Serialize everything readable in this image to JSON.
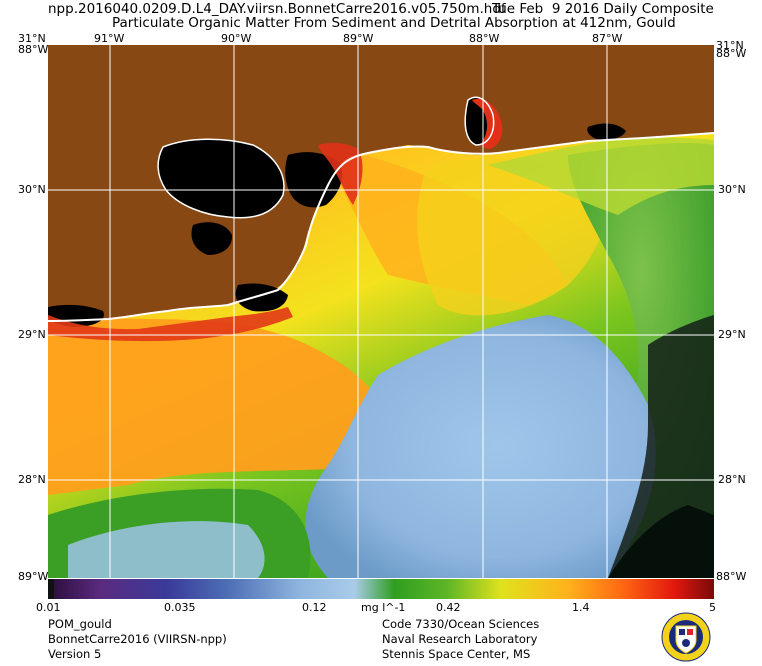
{
  "header": {
    "filename": "npp.2016040.0209.D.L4_DAY.viirsn.BonnetCarre2016.v05.750m.hdf",
    "date_label": "Tue Feb  9 2016 Daily Composite",
    "product_title": "Particulate Organic Matter From Sediment and Detrital Absorption at 412nm, Gould"
  },
  "map": {
    "top_lon_labels": [
      "91°W",
      "90°W",
      "89°W",
      "88°W",
      "87°W"
    ],
    "lat_labels": [
      "30°N",
      "29°N",
      "28°N"
    ],
    "corner_labels": {
      "top_left_lat": "31°N",
      "top_left_lon": "88°W",
      "top_right_lat": "31°N",
      "top_right_lon": "88°W",
      "bottom_left": "89°W",
      "bottom_right": "88°W"
    },
    "colors": {
      "land": "#874813",
      "no_data": "#000000",
      "coastline": "#ffffff",
      "grid": "#ffffff"
    }
  },
  "colorbar": {
    "ticks": [
      "0.01",
      "0.035",
      "0.12",
      "0.42",
      "1.4",
      "5"
    ],
    "unit": "mg l^-1",
    "scale": "log",
    "range": [
      0.01,
      5
    ]
  },
  "footer": {
    "left": [
      "POM_gould",
      "BonnetCarre2016 (VIIRSN-npp)",
      "Version 5"
    ],
    "right": [
      "Code 7330/Ocean Sciences",
      "Naval Research Laboratory",
      "Stennis Space Center, MS"
    ]
  }
}
